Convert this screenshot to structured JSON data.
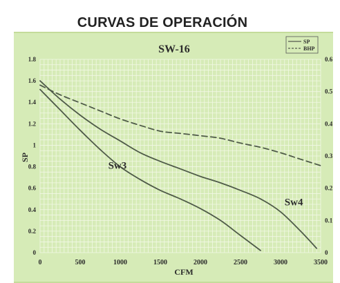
{
  "heading": "CURVAS DE OPERACIÓN",
  "colors": {
    "plot_background": "#d6ebb7",
    "grid_line": "#f2f8e6",
    "curve": "#4e5a48",
    "text": "#2b2b2b"
  },
  "chart_data": {
    "type": "line",
    "title": "SW-16",
    "xlabel": "CFM",
    "ylabel": "SP",
    "xlim": [
      0,
      3500
    ],
    "ylim": [
      0,
      1.8
    ],
    "y2lim": [
      0,
      0.6
    ],
    "x_ticks": [
      "0",
      "500",
      "1000",
      "1500",
      "2000",
      "2500",
      "3000",
      "3500"
    ],
    "y_ticks": [
      "0",
      "0.2",
      "0.4",
      "0.6",
      "0.8",
      "1",
      "1.2",
      "1.4",
      "1.6",
      "1.8"
    ],
    "y2_ticks": [
      "0",
      "0.1",
      "0.2",
      "0.3",
      "0.4",
      "0.5",
      "0.6"
    ],
    "grid": true,
    "legend": {
      "position": "top-right",
      "entries": [
        {
          "label": "SP",
          "style": "solid"
        },
        {
          "label": "BHP",
          "style": "dashed"
        }
      ]
    },
    "series": [
      {
        "name": "Sw3",
        "style": "solid",
        "axis": "left",
        "x": [
          0,
          250,
          500,
          750,
          1000,
          1250,
          1500,
          1750,
          2000,
          2250,
          2500,
          2750
        ],
        "y": [
          1.52,
          1.33,
          1.14,
          0.96,
          0.8,
          0.68,
          0.58,
          0.5,
          0.41,
          0.3,
          0.16,
          0.02
        ]
      },
      {
        "name": "Sw4",
        "style": "solid",
        "axis": "left",
        "x": [
          0,
          250,
          500,
          750,
          1000,
          1250,
          1500,
          1750,
          2000,
          2250,
          2500,
          2750,
          3000,
          3250,
          3450
        ],
        "y": [
          1.6,
          1.43,
          1.28,
          1.15,
          1.04,
          0.93,
          0.85,
          0.78,
          0.71,
          0.65,
          0.58,
          0.5,
          0.38,
          0.2,
          0.04
        ]
      },
      {
        "name": "BHP",
        "style": "dashed",
        "axis": "right",
        "x": [
          0,
          250,
          500,
          750,
          1000,
          1250,
          1500,
          1750,
          2000,
          2250,
          2500,
          2750,
          3000,
          3250,
          3500
        ],
        "y": [
          0.52,
          0.49,
          0.465,
          0.44,
          0.415,
          0.395,
          0.377,
          0.37,
          0.363,
          0.355,
          0.34,
          0.327,
          0.31,
          0.29,
          0.27
        ]
      }
    ],
    "annotations": [
      {
        "text": "Sw3",
        "x": 850,
        "y": 0.78
      },
      {
        "text": "Sw4",
        "x": 3050,
        "y": 0.44
      }
    ]
  }
}
